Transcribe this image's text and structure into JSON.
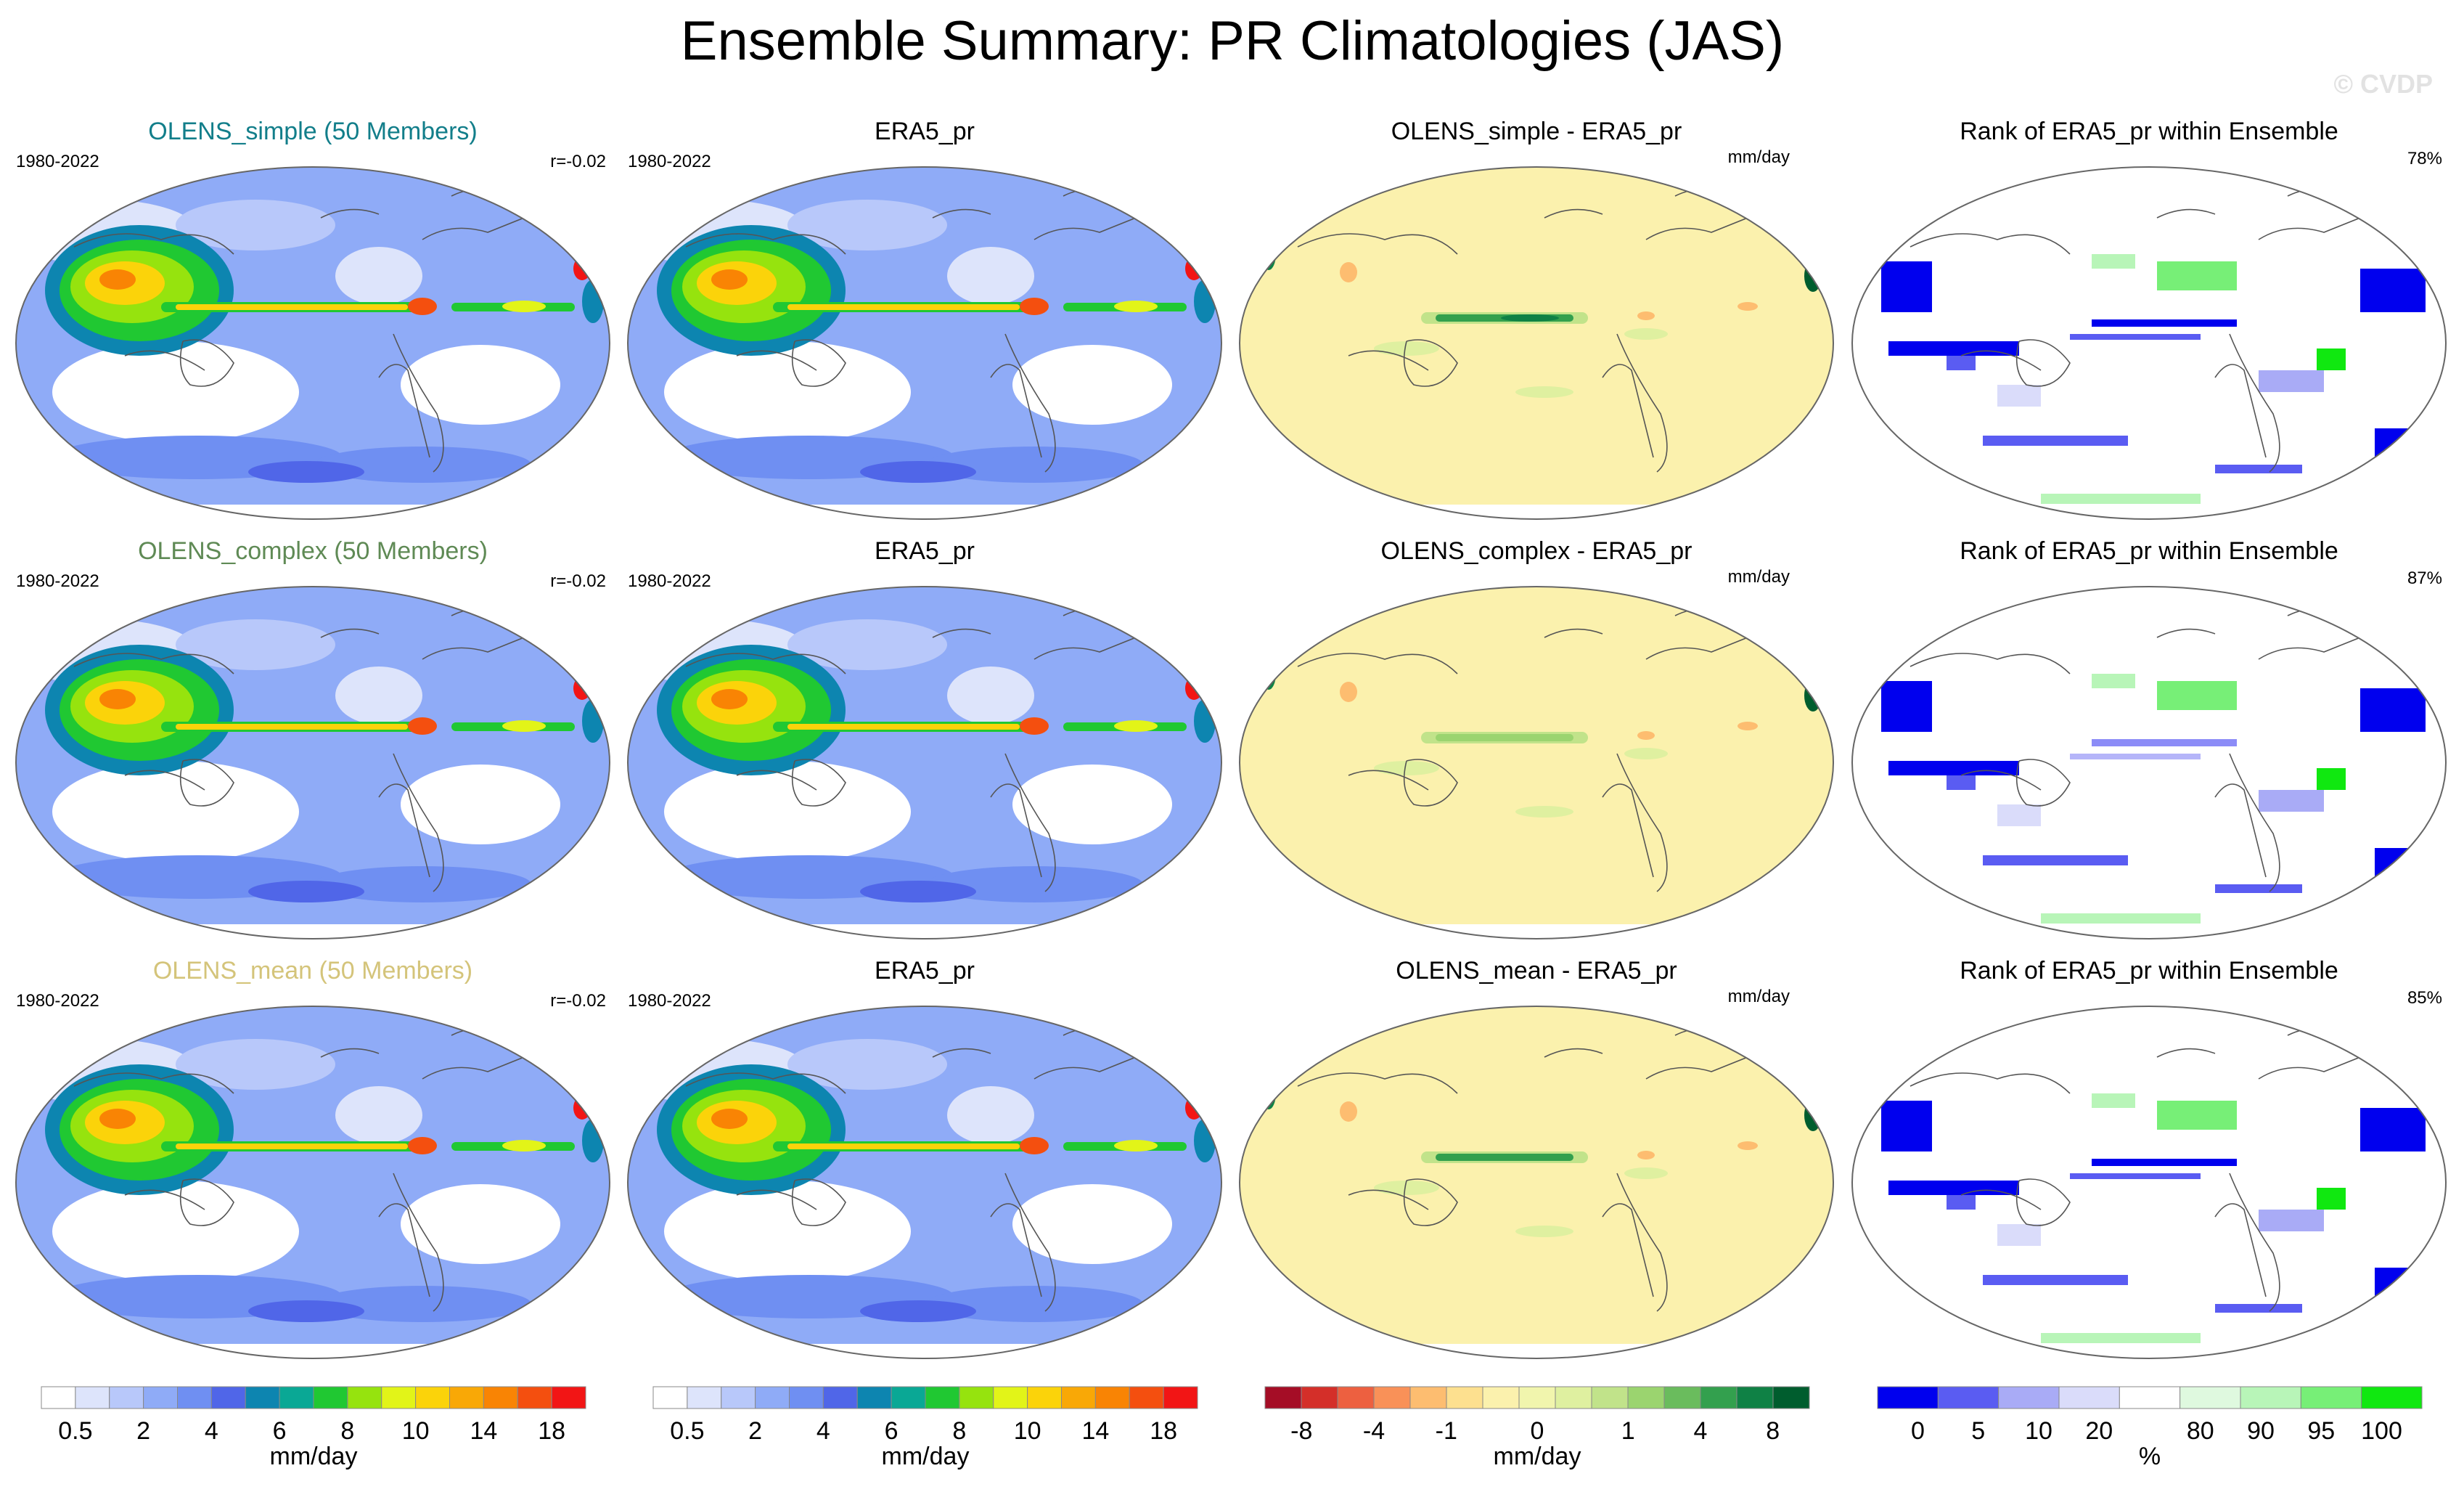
{
  "title": "Ensemble Summary: PR Climatologies (JAS)",
  "watermark": "© CVDP",
  "colors": {
    "pr": [
      "#ffffff",
      "#dde4fb",
      "#b8c8fa",
      "#8fabf7",
      "#6f8ff2",
      "#5066e8",
      "#0d85b0",
      "#0aa895",
      "#20c832",
      "#96e30e",
      "#e2f418",
      "#fbd30a",
      "#f9a806",
      "#f98404",
      "#f44f0f",
      "#f21515"
    ],
    "diff": [
      "#a50d26",
      "#d42f29",
      "#ed6040",
      "#f99158",
      "#fdbd70",
      "#fde08f",
      "#fbf1ad",
      "#f1f5ad",
      "#dff0a0",
      "#c1e38a",
      "#9bd46f",
      "#6abc5d",
      "#33a04e",
      "#0f8145",
      "#005d2e"
    ],
    "rank": [
      "#0000ee",
      "#5a5cf2",
      "#a9abf6",
      "#dadcfa",
      "#ffffff",
      "#dff9df",
      "#b8f5b8",
      "#77ef77",
      "#10e810"
    ],
    "coast": "#555555"
  },
  "rows": [
    {
      "ens_title": "OLENS_simple (50 Members)",
      "ens_title_color": "#127e8a",
      "period": "1980-2022",
      "r": "r=-0.02",
      "obs_title": "ERA5_pr",
      "obs_period": "1980-2022",
      "diff_title": "OLENS_simple - ERA5_pr",
      "diff_units": "mm/day",
      "rank_title": "Rank of ERA5_pr within Ensemble",
      "rank_pct": "78%"
    },
    {
      "ens_title": "OLENS_complex (50 Members)",
      "ens_title_color": "#5f8a55",
      "period": "1980-2022",
      "r": "r=-0.02",
      "obs_title": "ERA5_pr",
      "obs_period": "1980-2022",
      "diff_title": "OLENS_complex - ERA5_pr",
      "diff_units": "mm/day",
      "rank_title": "Rank of ERA5_pr within Ensemble",
      "rank_pct": "87%"
    },
    {
      "ens_title": "OLENS_mean (50 Members)",
      "ens_title_color": "#d4c47a",
      "period": "1980-2022",
      "r": "r=-0.02",
      "obs_title": "ERA5_pr",
      "obs_period": "1980-2022",
      "diff_title": "OLENS_mean - ERA5_pr",
      "diff_units": "mm/day",
      "rank_title": "Rank of ERA5_pr within Ensemble",
      "rank_pct": "85%"
    }
  ],
  "colorbars": {
    "pr": {
      "labels": [
        "0.5",
        "2",
        "4",
        "6",
        "8",
        "10",
        "14",
        "18"
      ],
      "units": "mm/day"
    },
    "diff": {
      "labels": [
        "-8",
        "-4",
        "-1",
        "0",
        "1",
        "4",
        "8"
      ],
      "units": "mm/day"
    },
    "rank": {
      "labels": [
        "0",
        "5",
        "10",
        "20",
        "80",
        "90",
        "95",
        "100"
      ],
      "units": "%"
    }
  },
  "chart_data": [
    {
      "type": "heatmap",
      "title": "OLENS_simple (50 Members)",
      "field": "precipitation climatology JAS",
      "period": "1980-2022",
      "units": "mm/day",
      "pattern_correlation": "r=-0.02",
      "levels": [
        0.5,
        1,
        2,
        3,
        4,
        5,
        6,
        7,
        8,
        9,
        10,
        12,
        14,
        16,
        18
      ]
    },
    {
      "type": "heatmap",
      "title": "ERA5_pr",
      "field": "precipitation climatology JAS",
      "period": "1980-2022",
      "units": "mm/day",
      "levels": [
        0.5,
        1,
        2,
        3,
        4,
        5,
        6,
        7,
        8,
        9,
        10,
        12,
        14,
        16,
        18
      ]
    },
    {
      "type": "heatmap",
      "title": "OLENS_simple - ERA5_pr",
      "units": "mm/day",
      "levels": [
        -8,
        -6,
        -4,
        -2,
        -1,
        -0.5,
        0,
        0.5,
        1,
        2,
        4,
        6,
        8
      ]
    },
    {
      "type": "heatmap",
      "title": "Rank of ERA5_pr within Ensemble",
      "units": "%",
      "area_within_10_90": "78%",
      "levels": [
        0,
        5,
        10,
        20,
        80,
        90,
        95,
        100
      ]
    },
    {
      "type": "heatmap",
      "title": "OLENS_complex (50 Members)",
      "period": "1980-2022",
      "units": "mm/day",
      "pattern_correlation": "r=-0.02"
    },
    {
      "type": "heatmap",
      "title": "OLENS_complex - ERA5_pr",
      "units": "mm/day"
    },
    {
      "type": "heatmap",
      "title": "Rank of ERA5_pr within Ensemble",
      "units": "%",
      "area_within_10_90": "87%"
    },
    {
      "type": "heatmap",
      "title": "OLENS_mean (50 Members)",
      "period": "1980-2022",
      "units": "mm/day",
      "pattern_correlation": "r=-0.02"
    },
    {
      "type": "heatmap",
      "title": "OLENS_mean - ERA5_pr",
      "units": "mm/day"
    },
    {
      "type": "heatmap",
      "title": "Rank of ERA5_pr within Ensemble",
      "units": "%",
      "area_within_10_90": "85%"
    }
  ]
}
